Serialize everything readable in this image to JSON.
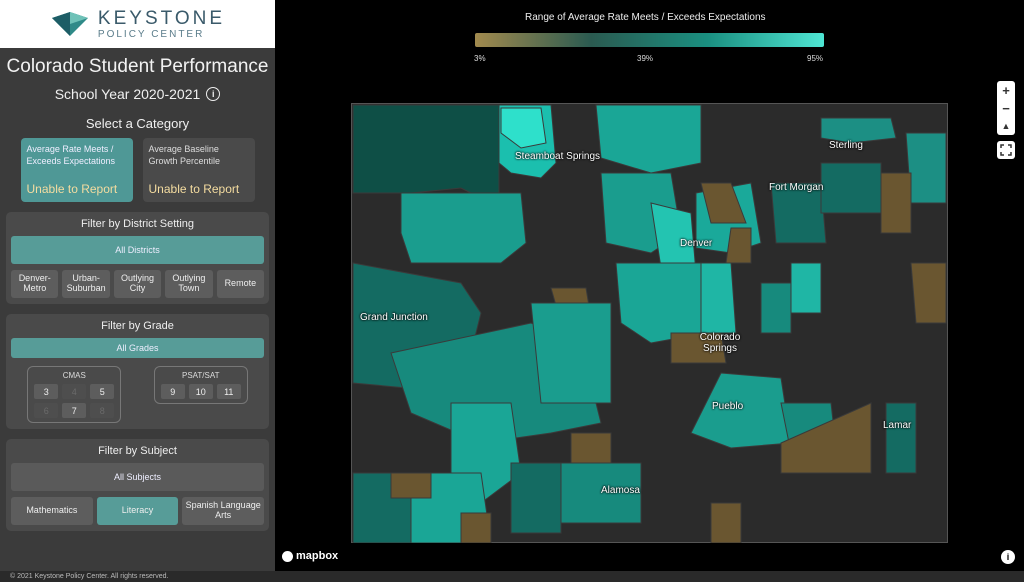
{
  "brand": {
    "name": "KEYSTONE",
    "sub": "POLICY CENTER"
  },
  "title": "Colorado Student Performance",
  "school_year": "School Year 2020-2021",
  "category": {
    "title": "Select a Category",
    "cards": [
      {
        "label": "Average Rate Meets / Exceeds Expectations",
        "status": "Unable to Report",
        "active": true
      },
      {
        "label": "Average Baseline Growth Percentile",
        "status": "Unable to Report",
        "active": false
      }
    ]
  },
  "district_filter": {
    "title": "Filter by District Setting",
    "all": "All Districts",
    "options": [
      "Denver-Metro",
      "Urban-Suburban",
      "Outlying City",
      "Outlying Town",
      "Remote"
    ]
  },
  "grade_filter": {
    "title": "Filter by Grade",
    "all": "All Grades",
    "cmas_label": "CMAS",
    "cmas": [
      "3",
      "4",
      "5",
      "6",
      "7",
      "8"
    ],
    "psat_label": "PSAT/SAT",
    "psat": [
      "9",
      "10",
      "11"
    ]
  },
  "subject_filter": {
    "title": "Filter by Subject",
    "all": "All Subjects",
    "options": [
      "Mathematics",
      "Literacy",
      "Spanish Language Arts"
    ]
  },
  "legend": {
    "title": "Range of Average Rate Meets / Exceeds Expectations",
    "min": "3%",
    "mid": "39%",
    "max": "95%",
    "colors": [
      "#a28a4e",
      "#2a5a50",
      "#1a8f80",
      "#4fe6d4"
    ]
  },
  "cities": [
    "Steamboat Springs",
    "Sterling",
    "Fort Morgan",
    "Denver",
    "Grand Junction",
    "Colorado Springs",
    "Pueblo",
    "Lamar",
    "Alamosa"
  ],
  "map_footer": {
    "provider": "mapbox"
  },
  "footer": "© 2021 Keystone Policy Center. All rights reserved."
}
